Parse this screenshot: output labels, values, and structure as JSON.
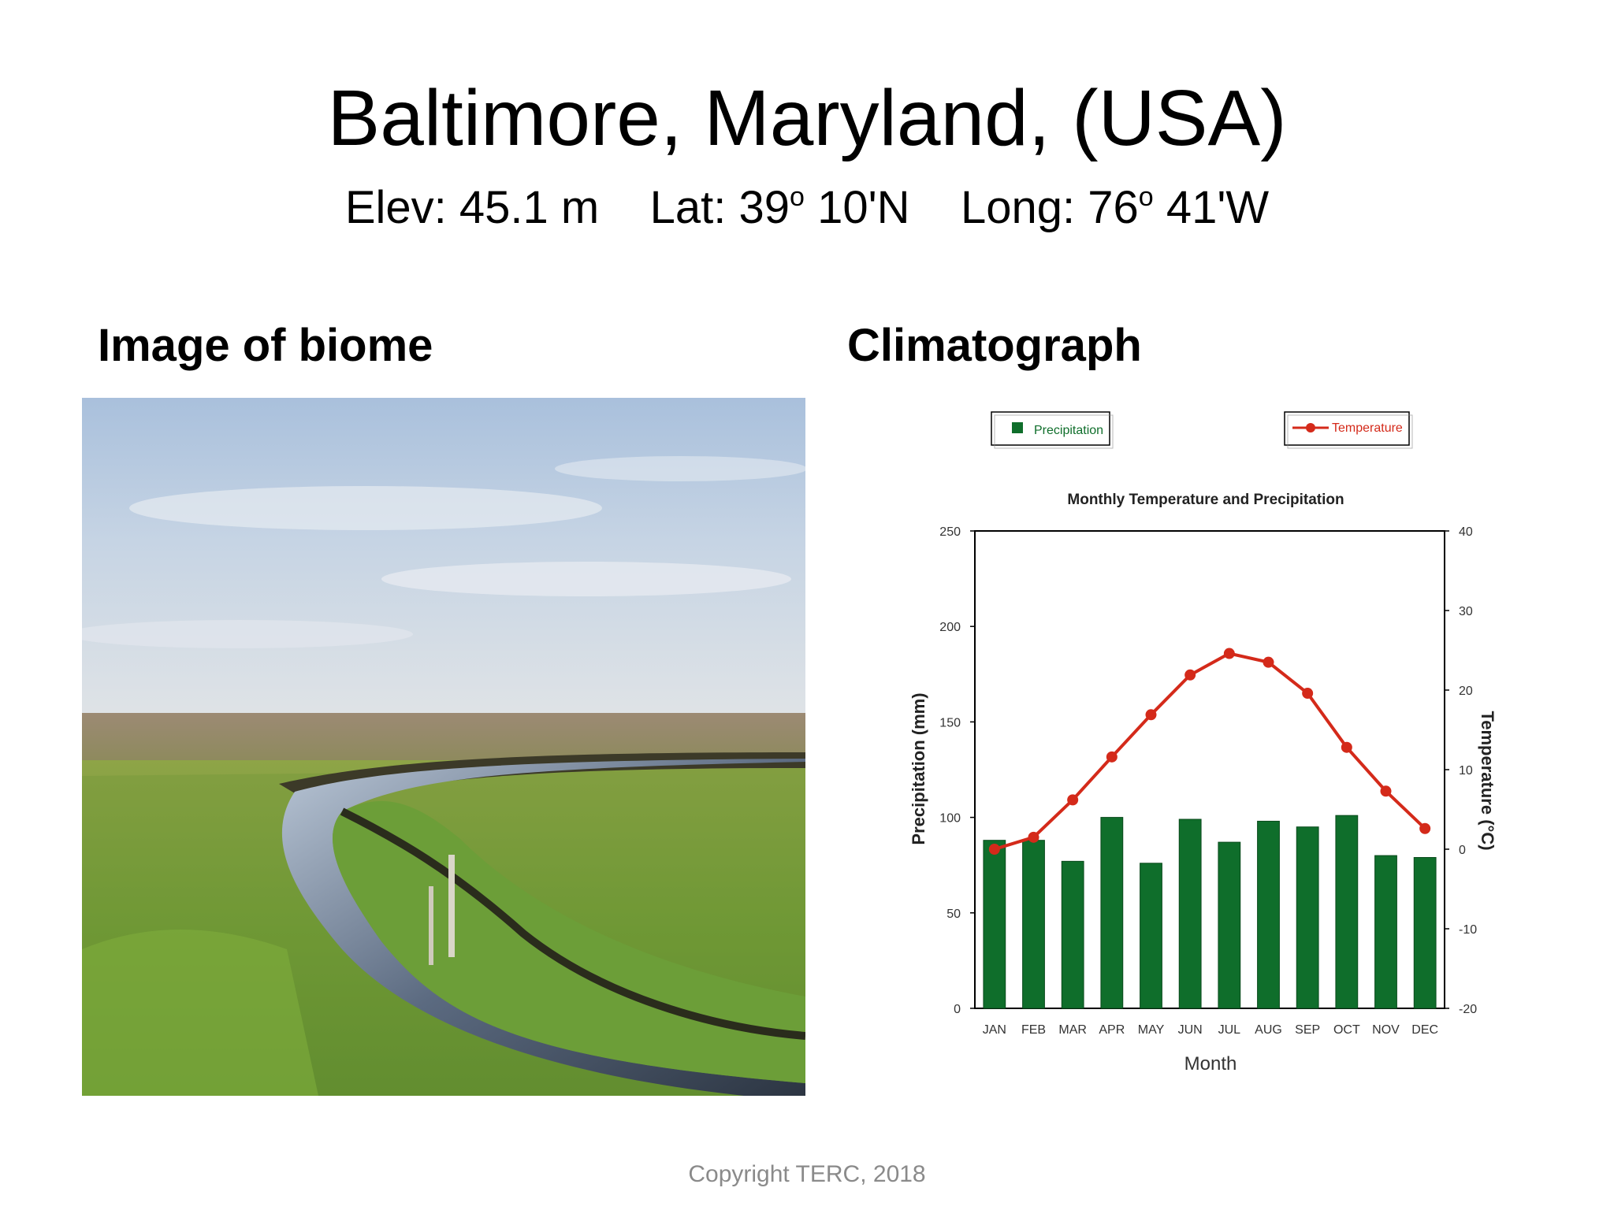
{
  "slide": {
    "title": "Baltimore, Maryland, (USA)",
    "subtitle": {
      "elev": "Elev: 45.1 m",
      "lat_prefix": "Lat: 39",
      "lat_suffix": " 10'N",
      "long_prefix": "Long: 76",
      "long_suffix": " 41'W",
      "degree_mark": "o"
    },
    "image_heading": "Image of biome",
    "chart_heading": "Climatograph",
    "copyright": "Copyright TERC, 2018"
  },
  "colors": {
    "bar": "#0f6e2b",
    "line": "#d42a1a",
    "axis": "#000000"
  },
  "chart_data": {
    "type": "bar",
    "title": "Monthly Temperature and Precipitation",
    "xlabel": "Month",
    "ylabel": "Precipitation (mm)",
    "y2label": "Temperature (°C)",
    "categories": [
      "JAN",
      "FEB",
      "MAR",
      "APR",
      "MAY",
      "JUN",
      "JUL",
      "AUG",
      "SEP",
      "OCT",
      "NOV",
      "DEC"
    ],
    "ylim": [
      0,
      250
    ],
    "y2lim": [
      -20,
      40
    ],
    "yticks": [
      0,
      50,
      100,
      150,
      200,
      250
    ],
    "y2ticks": [
      -20,
      -10,
      0,
      10,
      20,
      30,
      40
    ],
    "legend": [
      "Precipitation",
      "Temperature"
    ],
    "legend_position": "top",
    "series": [
      {
        "name": "Precipitation",
        "type": "bar",
        "values": [
          88,
          88,
          77,
          100,
          76,
          99,
          87,
          98,
          95,
          101,
          80,
          79
        ]
      },
      {
        "name": "Temperature",
        "type": "line",
        "values": [
          0.0,
          1.5,
          6.2,
          11.6,
          16.9,
          21.9,
          24.6,
          23.5,
          19.6,
          12.8,
          7.3,
          2.6
        ]
      }
    ]
  }
}
